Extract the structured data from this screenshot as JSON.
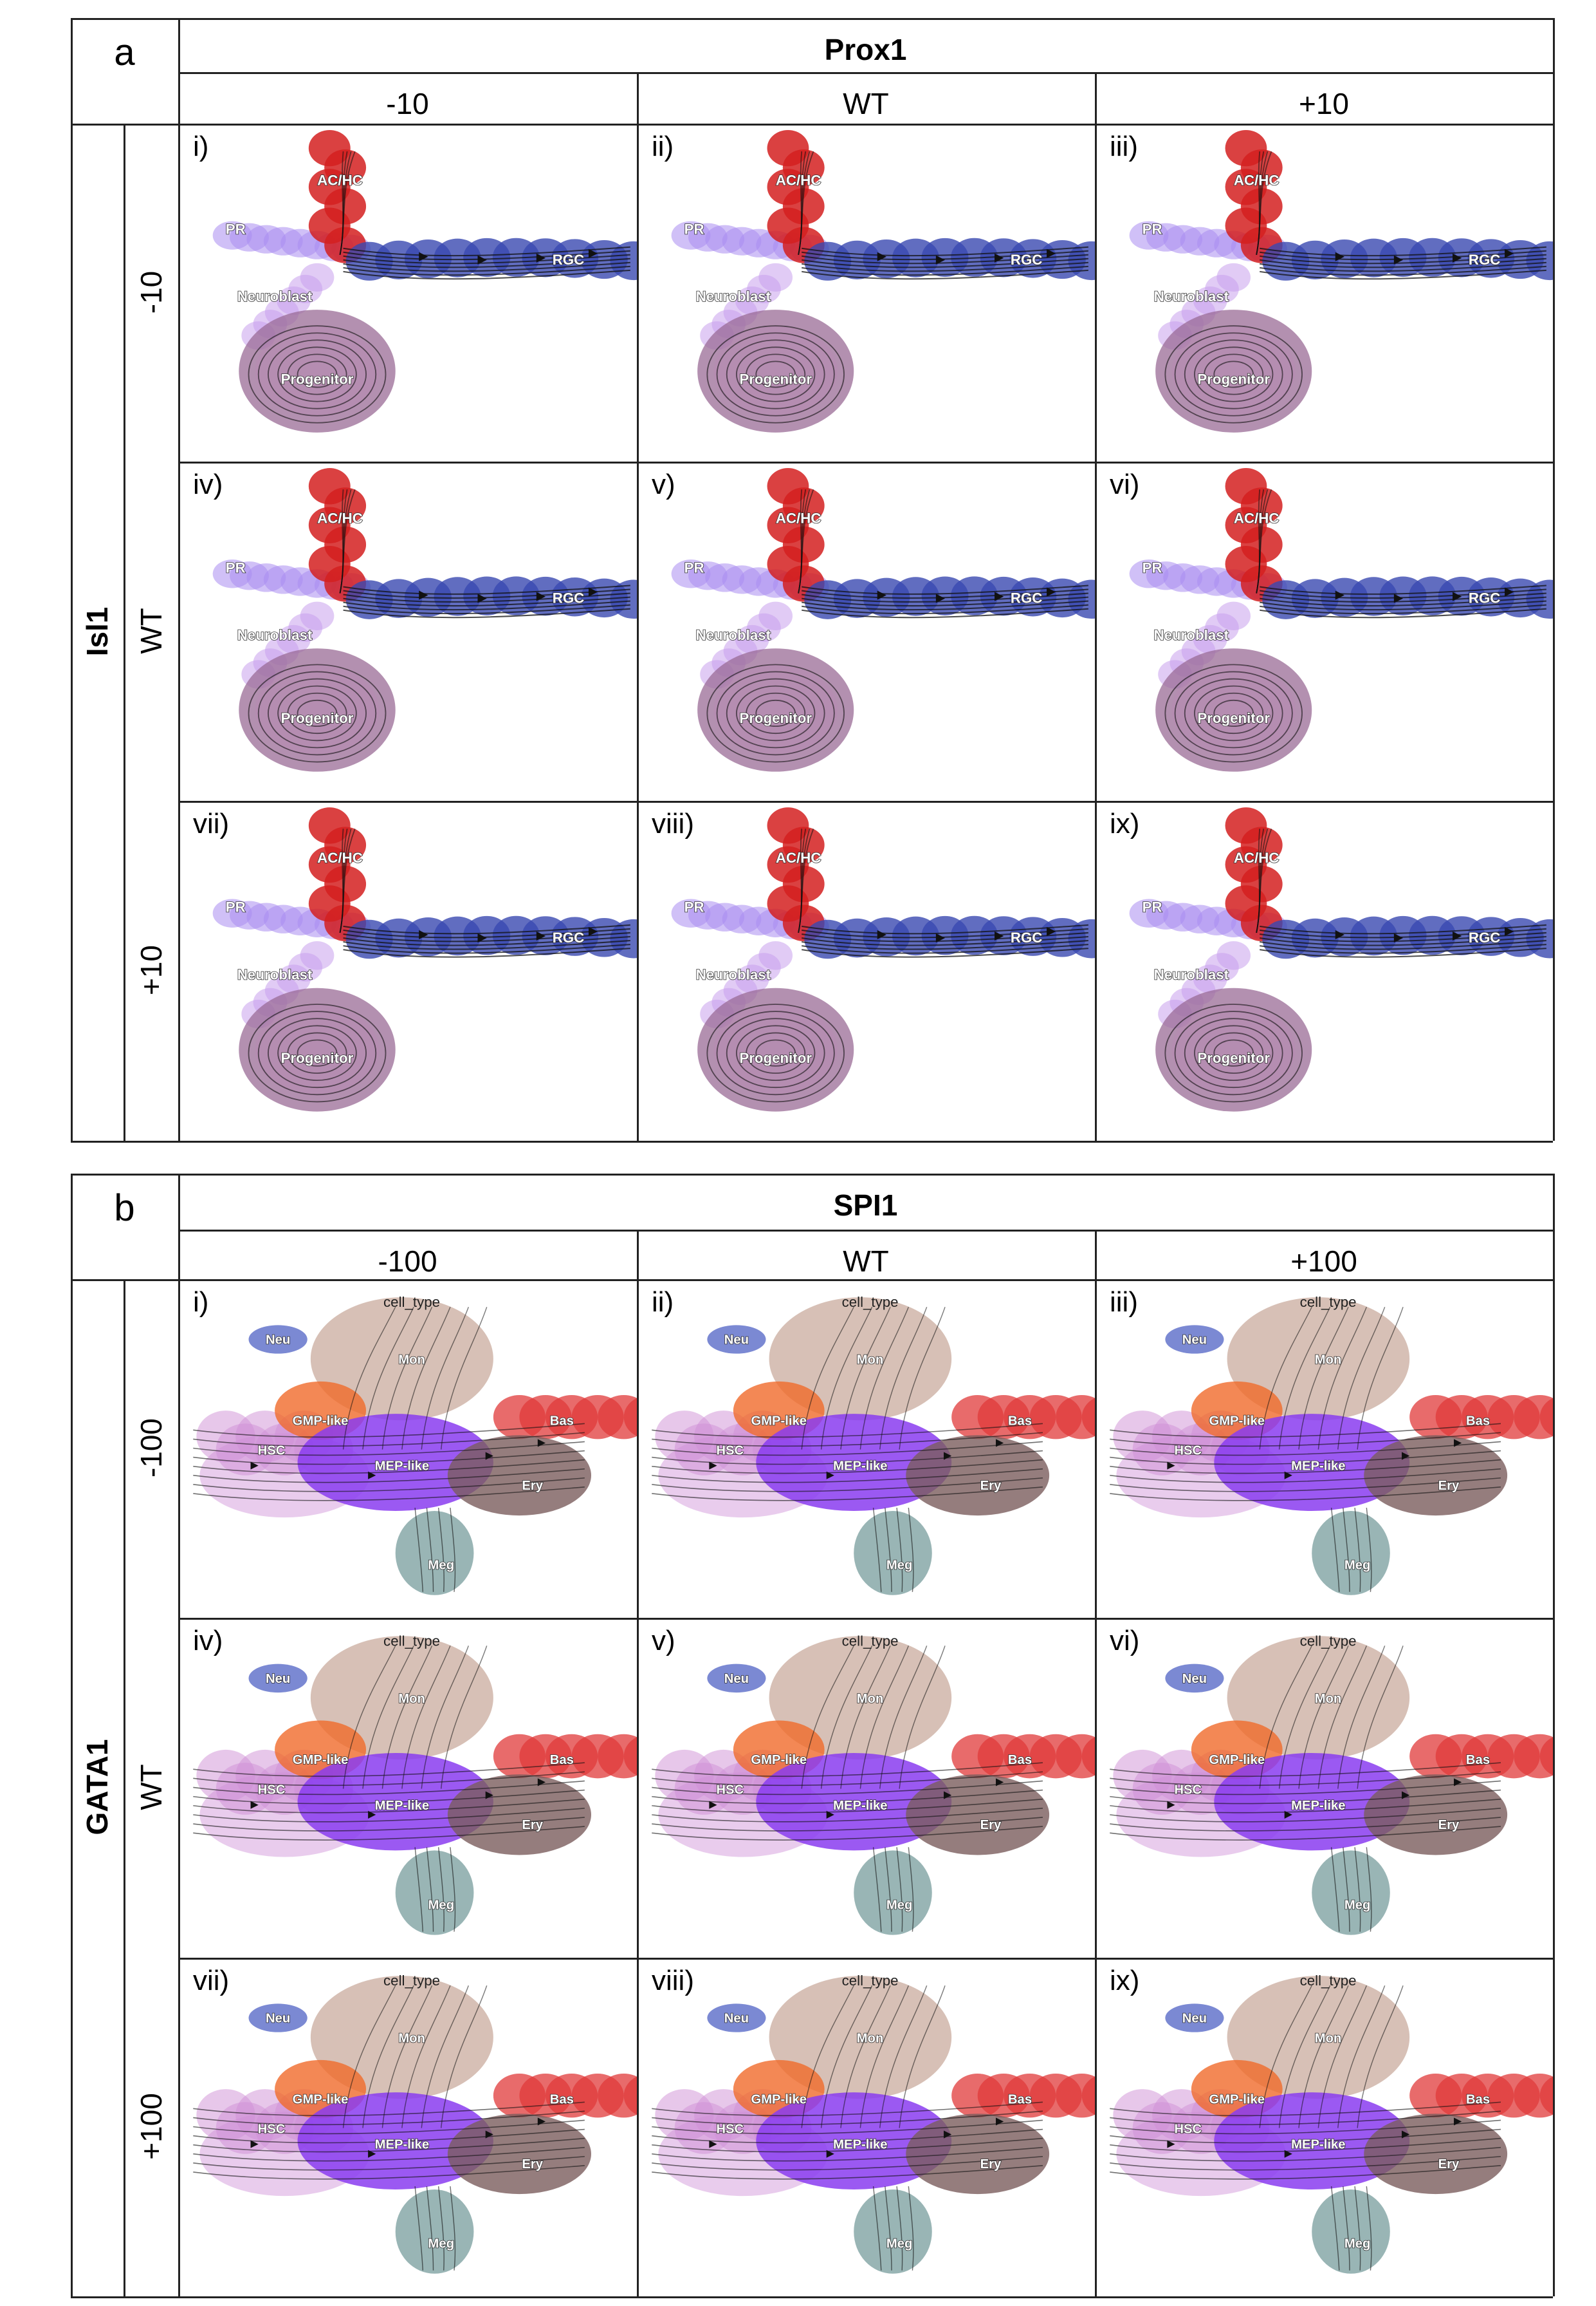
{
  "panel_a": {
    "letter": "a",
    "column_gene": "Prox1",
    "row_gene": "Isl1",
    "column_levels": [
      "-10",
      "WT",
      "+10"
    ],
    "row_levels": [
      "-10",
      "WT",
      "+10"
    ],
    "subplot_labels": [
      "i)",
      "ii)",
      "iii)",
      "iv)",
      "v)",
      "vi)",
      "vii)",
      "viii)",
      "ix)"
    ],
    "cluster_labels": {
      "achc": "AC/HC",
      "pr": "PR",
      "rgc": "RGC",
      "neuroblast": "Neuroblast",
      "progenitor": "Progenitor"
    },
    "colors": {
      "achc": "#d42020",
      "pr": "#a98df0",
      "rgc": "#3a49b0",
      "neuroblast": "#c9a0ec",
      "progenitor": "#9a6b96"
    }
  },
  "panel_b": {
    "letter": "b",
    "column_gene": "SPI1",
    "row_gene": "GATA1",
    "column_levels": [
      "-100",
      "WT",
      "+100"
    ],
    "row_levels": [
      "-100",
      "WT",
      "+100"
    ],
    "subplot_labels": [
      "i)",
      "ii)",
      "iii)",
      "iv)",
      "v)",
      "vi)",
      "vii)",
      "viii)",
      "ix)"
    ],
    "plot_title": "cell_type",
    "cluster_labels": {
      "neu": "Neu",
      "mon": "Mon",
      "gmp": "GMP-like",
      "bas": "Bas",
      "hsc": "HSC",
      "mep": "MEP-like",
      "ery": "Ery",
      "meg": "Meg"
    },
    "colors": {
      "neu": "#5a6cc8",
      "mon": "#c9ab9e",
      "gmp": "#f06a2a",
      "bas": "#e03a3a",
      "hsc": "#cf8fd6",
      "mep": "#8a3cf0",
      "ery": "#7a5c5c",
      "meg": "#7fa3a3"
    }
  }
}
